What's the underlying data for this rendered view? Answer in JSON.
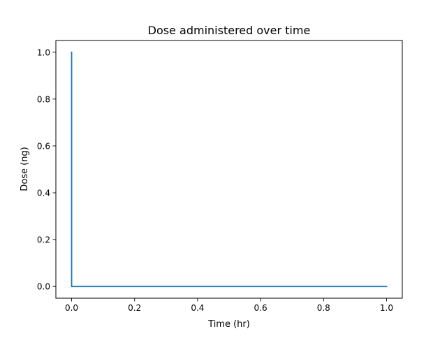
{
  "chart_data": {
    "type": "line",
    "title": "Dose administered over time",
    "xlabel": "Time (hr)",
    "ylabel": "Dose (ng)",
    "xlim": [
      -0.05,
      1.05
    ],
    "ylim": [
      -0.05,
      1.05
    ],
    "xticks": [
      0.0,
      0.2,
      0.4,
      0.6,
      0.8,
      1.0
    ],
    "xtick_labels": [
      "0.0",
      "0.2",
      "0.4",
      "0.6",
      "0.8",
      "1.0"
    ],
    "yticks": [
      0.0,
      0.2,
      0.4,
      0.6,
      0.8,
      1.0
    ],
    "ytick_labels": [
      "0.0",
      "0.2",
      "0.4",
      "0.6",
      "0.8",
      "1.0"
    ],
    "grid": false,
    "series": [
      {
        "color": "#1f77b4",
        "x": [
          0.0,
          0.0,
          0.01,
          1.0
        ],
        "y": [
          1.0,
          0.0,
          0.0,
          0.0
        ]
      }
    ]
  }
}
